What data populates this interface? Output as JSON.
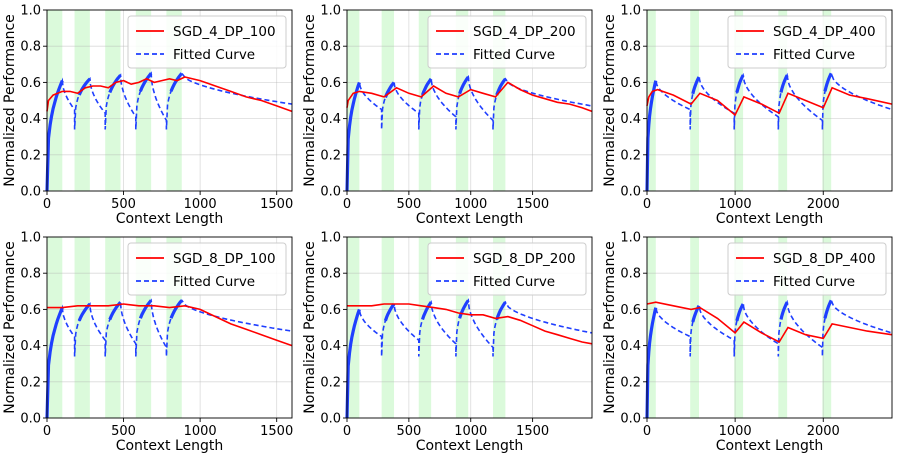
{
  "chart_data": [
    {
      "type": "line",
      "legend_location": "top-right",
      "grid": true,
      "xlabel": "Context Length",
      "ylabel": "Normalized Performance",
      "xlim": [
        0,
        1600
      ],
      "ylim": [
        0.0,
        1.0
      ],
      "xticks": [
        0,
        500,
        1000,
        1500
      ],
      "yticks": [
        0.0,
        0.2,
        0.4,
        0.6,
        0.8,
        1.0
      ],
      "shaded_spans": [
        [
          0,
          100
        ],
        [
          180,
          280
        ],
        [
          380,
          480
        ],
        [
          580,
          680
        ],
        [
          780,
          880
        ]
      ],
      "series": [
        {
          "name": "SGD_4_DP_100",
          "color": "#ff0000",
          "style": "solid",
          "x": [
            0,
            10,
            40,
            100,
            150,
            200,
            250,
            300,
            350,
            400,
            450,
            500,
            550,
            600,
            650,
            700,
            750,
            800,
            850,
            900,
            1000,
            1100,
            1200,
            1300,
            1400,
            1500,
            1600
          ],
          "y": [
            0.44,
            0.5,
            0.53,
            0.55,
            0.55,
            0.54,
            0.57,
            0.58,
            0.58,
            0.57,
            0.6,
            0.61,
            0.59,
            0.6,
            0.62,
            0.6,
            0.61,
            0.62,
            0.61,
            0.63,
            0.61,
            0.58,
            0.55,
            0.52,
            0.5,
            0.47,
            0.44
          ]
        },
        {
          "name": "Fitted Curve",
          "color": "#1f3fff",
          "style": "dashed",
          "resets": [
            0,
            180,
            380,
            580,
            780
          ],
          "tail_end": 1600,
          "peaks": [
            0.61,
            0.62,
            0.64,
            0.65,
            0.65
          ],
          "tail_end_value": 0.48
        }
      ]
    },
    {
      "type": "line",
      "legend_location": "top-right",
      "grid": true,
      "xlabel": "Context Length",
      "ylabel": "Normalized Performance",
      "xlim": [
        0,
        1980
      ],
      "ylim": [
        0.0,
        1.0
      ],
      "xticks": [
        0,
        500,
        1000,
        1500
      ],
      "yticks": [
        0.0,
        0.2,
        0.4,
        0.6,
        0.8,
        1.0
      ],
      "shaded_spans": [
        [
          0,
          100
        ],
        [
          280,
          380
        ],
        [
          580,
          680
        ],
        [
          880,
          980
        ],
        [
          1180,
          1280
        ]
      ],
      "series": [
        {
          "name": "SGD_4_DP_200",
          "color": "#ff0000",
          "style": "solid",
          "x": [
            0,
            10,
            50,
            100,
            200,
            300,
            400,
            500,
            600,
            700,
            800,
            900,
            1000,
            1100,
            1200,
            1300,
            1400,
            1500,
            1600,
            1700,
            1800,
            1900,
            1980
          ],
          "y": [
            0.46,
            0.5,
            0.54,
            0.55,
            0.54,
            0.52,
            0.57,
            0.54,
            0.52,
            0.58,
            0.54,
            0.52,
            0.56,
            0.54,
            0.52,
            0.6,
            0.56,
            0.53,
            0.51,
            0.49,
            0.48,
            0.46,
            0.44
          ]
        },
        {
          "name": "Fitted Curve",
          "color": "#1f3fff",
          "style": "dashed",
          "resets": [
            0,
            280,
            580,
            880,
            1180
          ],
          "tail_end": 1980,
          "peaks": [
            0.6,
            0.6,
            0.62,
            0.63,
            0.62
          ],
          "tail_end_value": 0.47
        }
      ]
    },
    {
      "type": "line",
      "legend_location": "top-right",
      "grid": true,
      "xlabel": "Context Length",
      "ylabel": "Normalized Performance",
      "xlim": [
        0,
        2780
      ],
      "ylim": [
        0.0,
        1.0
      ],
      "xticks": [
        0,
        1000,
        2000
      ],
      "yticks": [
        0.0,
        0.2,
        0.4,
        0.6,
        0.8,
        1.0
      ],
      "shaded_spans": [
        [
          0,
          100
        ],
        [
          490,
          590
        ],
        [
          990,
          1090
        ],
        [
          1490,
          1590
        ],
        [
          1990,
          2090
        ]
      ],
      "series": [
        {
          "name": "SGD_4_DP_400",
          "color": "#ff0000",
          "style": "solid",
          "x": [
            0,
            20,
            60,
            120,
            300,
            500,
            600,
            800,
            1000,
            1100,
            1300,
            1500,
            1600,
            1800,
            2000,
            2100,
            2300,
            2500,
            2780
          ],
          "y": [
            0.47,
            0.52,
            0.55,
            0.56,
            0.53,
            0.48,
            0.54,
            0.5,
            0.42,
            0.52,
            0.48,
            0.43,
            0.54,
            0.5,
            0.46,
            0.57,
            0.53,
            0.51,
            0.48
          ]
        },
        {
          "name": "Fitted Curve",
          "color": "#1f3fff",
          "style": "dashed",
          "resets": [
            0,
            490,
            990,
            1490,
            1990
          ],
          "tail_end": 2780,
          "peaks": [
            0.61,
            0.63,
            0.64,
            0.64,
            0.65
          ],
          "tail_end_value": 0.45
        }
      ]
    },
    {
      "type": "line",
      "legend_location": "top-right",
      "grid": true,
      "xlabel": "Context Length",
      "ylabel": "Normalized Performance",
      "xlim": [
        0,
        1600
      ],
      "ylim": [
        0.0,
        1.0
      ],
      "xticks": [
        0,
        500,
        1000,
        1500
      ],
      "yticks": [
        0.0,
        0.2,
        0.4,
        0.6,
        0.8,
        1.0
      ],
      "shaded_spans": [
        [
          0,
          100
        ],
        [
          180,
          280
        ],
        [
          380,
          480
        ],
        [
          580,
          680
        ],
        [
          780,
          880
        ]
      ],
      "series": [
        {
          "name": "SGD_8_DP_100",
          "color": "#ff0000",
          "style": "solid",
          "x": [
            0,
            100,
            200,
            300,
            400,
            500,
            600,
            700,
            800,
            900,
            1000,
            1100,
            1200,
            1300,
            1400,
            1500,
            1600
          ],
          "y": [
            0.61,
            0.61,
            0.62,
            0.62,
            0.62,
            0.63,
            0.62,
            0.62,
            0.61,
            0.62,
            0.6,
            0.56,
            0.52,
            0.49,
            0.46,
            0.43,
            0.4
          ]
        },
        {
          "name": "Fitted Curve",
          "color": "#1f3fff",
          "style": "dashed",
          "resets": [
            0,
            180,
            380,
            580,
            780
          ],
          "tail_end": 1600,
          "peaks": [
            0.61,
            0.63,
            0.64,
            0.65,
            0.65
          ],
          "tail_end_value": 0.48
        }
      ]
    },
    {
      "type": "line",
      "legend_location": "top-right",
      "grid": true,
      "xlabel": "Context Length",
      "ylabel": "Normalized Performance",
      "xlim": [
        0,
        1980
      ],
      "ylim": [
        0.0,
        1.0
      ],
      "xticks": [
        0,
        500,
        1000,
        1500
      ],
      "yticks": [
        0.0,
        0.2,
        0.4,
        0.6,
        0.8,
        1.0
      ],
      "shaded_spans": [
        [
          0,
          100
        ],
        [
          280,
          380
        ],
        [
          580,
          680
        ],
        [
          880,
          980
        ],
        [
          1180,
          1280
        ]
      ],
      "series": [
        {
          "name": "SGD_8_DP_200",
          "color": "#ff0000",
          "style": "solid",
          "x": [
            0,
            100,
            200,
            300,
            400,
            500,
            600,
            700,
            800,
            900,
            1000,
            1100,
            1200,
            1300,
            1400,
            1500,
            1600,
            1700,
            1800,
            1900,
            1980
          ],
          "y": [
            0.62,
            0.62,
            0.62,
            0.63,
            0.63,
            0.63,
            0.62,
            0.61,
            0.6,
            0.58,
            0.57,
            0.57,
            0.55,
            0.56,
            0.54,
            0.51,
            0.48,
            0.46,
            0.44,
            0.42,
            0.41
          ]
        },
        {
          "name": "Fitted Curve",
          "color": "#1f3fff",
          "style": "dashed",
          "resets": [
            0,
            280,
            580,
            880,
            1180
          ],
          "tail_end": 1980,
          "peaks": [
            0.6,
            0.63,
            0.64,
            0.65,
            0.64
          ],
          "tail_end_value": 0.47
        }
      ]
    },
    {
      "type": "line",
      "legend_location": "top-right",
      "grid": true,
      "xlabel": "Context Length",
      "ylabel": "Normalized Performance",
      "xlim": [
        0,
        2780
      ],
      "ylim": [
        0.0,
        1.0
      ],
      "xticks": [
        0,
        1000,
        2000
      ],
      "yticks": [
        0.0,
        0.2,
        0.4,
        0.6,
        0.8,
        1.0
      ],
      "shaded_spans": [
        [
          0,
          100
        ],
        [
          490,
          590
        ],
        [
          990,
          1090
        ],
        [
          1490,
          1590
        ],
        [
          1990,
          2090
        ]
      ],
      "series": [
        {
          "name": "SGD_8_DP_400",
          "color": "#ff0000",
          "style": "solid",
          "x": [
            0,
            100,
            300,
            500,
            600,
            800,
            1000,
            1100,
            1300,
            1500,
            1600,
            1800,
            2000,
            2100,
            2300,
            2500,
            2780
          ],
          "y": [
            0.63,
            0.64,
            0.62,
            0.6,
            0.61,
            0.55,
            0.47,
            0.53,
            0.47,
            0.42,
            0.5,
            0.46,
            0.44,
            0.52,
            0.5,
            0.48,
            0.46
          ]
        },
        {
          "name": "Fitted Curve",
          "color": "#1f3fff",
          "style": "dashed",
          "resets": [
            0,
            490,
            990,
            1490,
            1990
          ],
          "tail_end": 2780,
          "peaks": [
            0.61,
            0.62,
            0.63,
            0.64,
            0.65
          ],
          "tail_end_value": 0.47
        }
      ]
    }
  ]
}
